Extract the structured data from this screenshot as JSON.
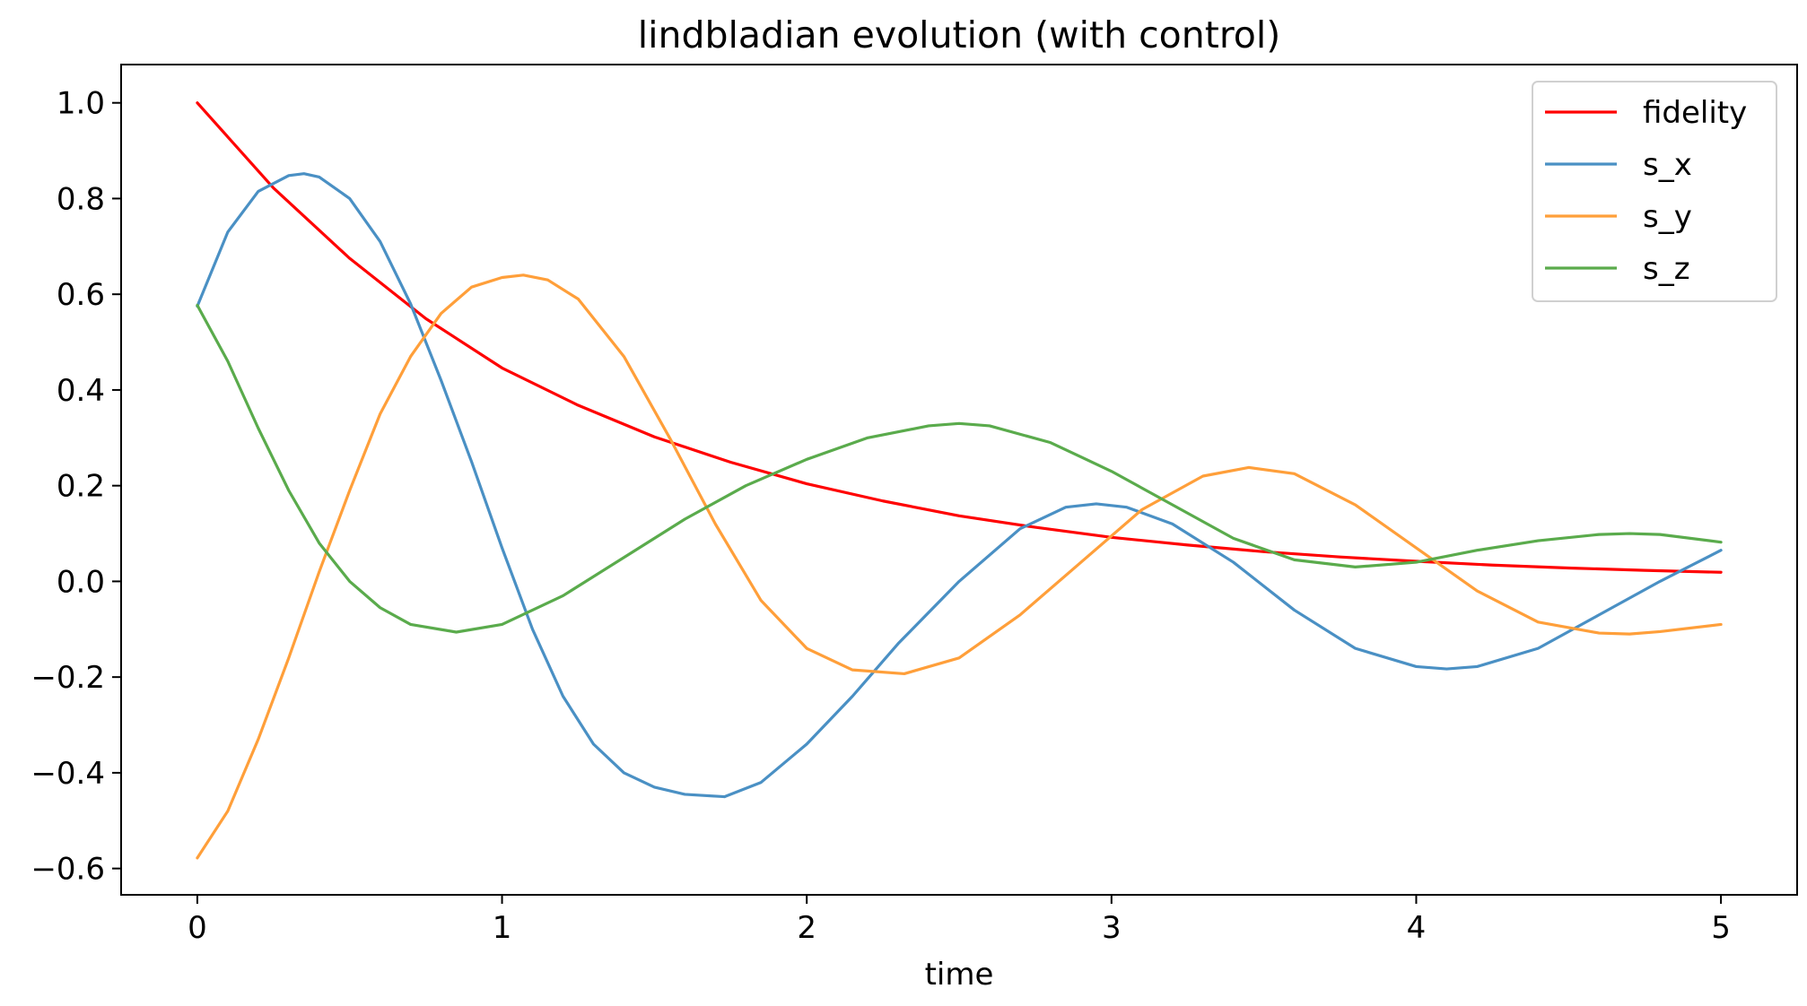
{
  "chart_data": {
    "type": "line",
    "title": "lindbladian evolution (with control)",
    "xlabel": "time",
    "ylabel": "",
    "xlim": [
      -0.25,
      5.25
    ],
    "ylim": [
      -0.655,
      1.08
    ],
    "xticks": [
      0,
      1,
      2,
      3,
      4,
      5
    ],
    "xtick_labels": [
      "0",
      "1",
      "2",
      "3",
      "4",
      "5"
    ],
    "yticks": [
      -0.6,
      -0.4,
      -0.2,
      0.0,
      0.2,
      0.4,
      0.6,
      0.8,
      1.0
    ],
    "ytick_labels": [
      "−0.6",
      "−0.4",
      "−0.2",
      "0.0",
      "0.2",
      "0.4",
      "0.6",
      "0.8",
      "1.0"
    ],
    "grid": false,
    "legend_position": "top-right",
    "series": [
      {
        "name": "fidelity",
        "color": "#ff0000",
        "x": [
          0,
          0.25,
          0.5,
          0.75,
          1.0,
          1.25,
          1.5,
          1.75,
          2.0,
          2.25,
          2.5,
          2.75,
          3.0,
          3.25,
          3.5,
          3.75,
          4.0,
          4.25,
          4.5,
          4.75,
          5.0
        ],
        "y": [
          1.0,
          0.822,
          0.675,
          0.549,
          0.446,
          0.368,
          0.302,
          0.249,
          0.204,
          0.168,
          0.137,
          0.113,
          0.092,
          0.076,
          0.062,
          0.051,
          0.042,
          0.034,
          0.028,
          0.023,
          0.019
        ]
      },
      {
        "name": "s_x",
        "color": "#4a90c4",
        "x": [
          0,
          0.1,
          0.2,
          0.3,
          0.35,
          0.4,
          0.5,
          0.6,
          0.7,
          0.8,
          0.9,
          1.0,
          1.1,
          1.2,
          1.3,
          1.4,
          1.5,
          1.6,
          1.73,
          1.85,
          2.0,
          2.15,
          2.3,
          2.5,
          2.7,
          2.85,
          2.95,
          3.05,
          3.2,
          3.4,
          3.6,
          3.8,
          4.0,
          4.1,
          4.2,
          4.4,
          4.6,
          4.8,
          5.0
        ],
        "y": [
          0.575,
          0.73,
          0.815,
          0.848,
          0.852,
          0.845,
          0.8,
          0.71,
          0.58,
          0.42,
          0.25,
          0.07,
          -0.1,
          -0.24,
          -0.34,
          -0.4,
          -0.43,
          -0.445,
          -0.45,
          -0.42,
          -0.34,
          -0.24,
          -0.13,
          0.0,
          0.11,
          0.155,
          0.162,
          0.155,
          0.12,
          0.04,
          -0.06,
          -0.14,
          -0.178,
          -0.183,
          -0.178,
          -0.14,
          -0.07,
          0.0,
          0.065
        ]
      },
      {
        "name": "s_y",
        "color": "#ff9f3a",
        "x": [
          0,
          0.1,
          0.2,
          0.3,
          0.4,
          0.5,
          0.6,
          0.7,
          0.8,
          0.9,
          1.0,
          1.07,
          1.15,
          1.25,
          1.4,
          1.55,
          1.7,
          1.85,
          2.0,
          2.15,
          2.32,
          2.5,
          2.7,
          2.9,
          3.1,
          3.3,
          3.45,
          3.6,
          3.8,
          4.0,
          4.2,
          4.4,
          4.6,
          4.7,
          4.8,
          5.0
        ],
        "y": [
          -0.578,
          -0.48,
          -0.33,
          -0.16,
          0.02,
          0.19,
          0.35,
          0.47,
          0.56,
          0.615,
          0.635,
          0.64,
          0.63,
          0.59,
          0.47,
          0.3,
          0.12,
          -0.04,
          -0.14,
          -0.185,
          -0.193,
          -0.16,
          -0.07,
          0.04,
          0.15,
          0.22,
          0.238,
          0.225,
          0.16,
          0.07,
          -0.02,
          -0.085,
          -0.108,
          -0.11,
          -0.105,
          -0.09
        ]
      },
      {
        "name": "s_z",
        "color": "#5aab4c",
        "x": [
          0,
          0.1,
          0.2,
          0.3,
          0.4,
          0.5,
          0.6,
          0.7,
          0.85,
          1.0,
          1.2,
          1.4,
          1.6,
          1.8,
          2.0,
          2.2,
          2.4,
          2.5,
          2.6,
          2.8,
          3.0,
          3.2,
          3.4,
          3.6,
          3.8,
          4.0,
          4.2,
          4.4,
          4.6,
          4.7,
          4.8,
          5.0
        ],
        "y": [
          0.577,
          0.46,
          0.32,
          0.19,
          0.08,
          0.0,
          -0.055,
          -0.09,
          -0.106,
          -0.09,
          -0.03,
          0.05,
          0.13,
          0.2,
          0.255,
          0.3,
          0.325,
          0.33,
          0.325,
          0.29,
          0.23,
          0.16,
          0.09,
          0.045,
          0.03,
          0.04,
          0.065,
          0.085,
          0.098,
          0.1,
          0.098,
          0.082
        ]
      }
    ]
  }
}
